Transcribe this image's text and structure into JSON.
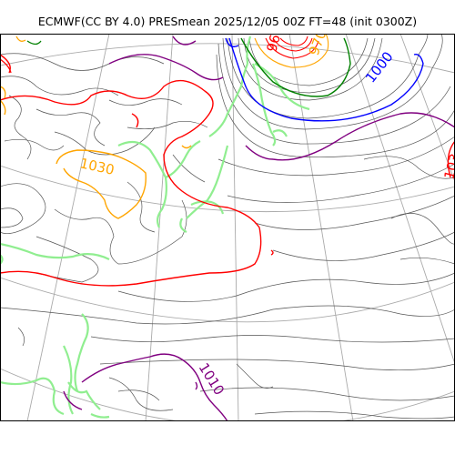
{
  "title": "ECMWF(CC BY 4.0) PRESmean 2025/12/05 00Z FT=48 (init 0300Z)",
  "colors": {
    "coastline": "#90ee90",
    "isobar_thin": "#555555",
    "isobar_1000": "#0000ff",
    "isobar_1010": "#800080",
    "isobar_1020": "#ff0000",
    "isobar_1030": "#ffa500",
    "isobar_990": "#008000",
    "graticule": "#aaaaaa"
  },
  "contour_labels": {
    "label_1000": "1000",
    "label_1030": "1030",
    "label_1010": "1010",
    "label_960": "960",
    "label_970": "970",
    "label_103_edge": "103"
  }
}
